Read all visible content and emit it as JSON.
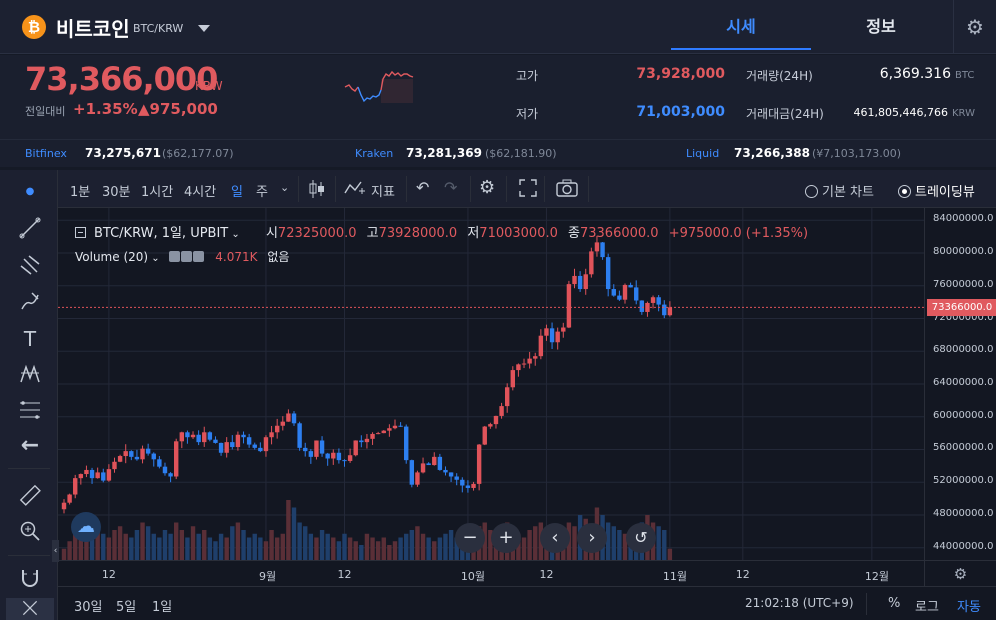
{
  "header": {
    "coin_symbol": "₿",
    "coin_name": "비트코인",
    "pair": "BTC/KRW",
    "tabs": [
      "시세",
      "정보"
    ]
  },
  "summary": {
    "price": "73,366,000",
    "unit": "KRW",
    "change_label": "전일대비",
    "change_pct": "+1.35%",
    "change_amt": "▲975,000",
    "high_label": "고가",
    "high": "73,928,000",
    "low_label": "저가",
    "low": "71,003,000",
    "volume_label": "거래량(24H)",
    "volume": "6,369.316",
    "volume_unit": "BTC",
    "amount_label": "거래대금(24H)",
    "amount": "461,805,446,766",
    "amount_unit": "KRW"
  },
  "exchanges": [
    {
      "name": "Bitfinex",
      "price": "73,275,671",
      "alt": "($62,177.07)"
    },
    {
      "name": "Kraken",
      "price": "73,281,369",
      "alt": "($62,181.90)"
    },
    {
      "name": "Liquid",
      "price": "73,266,388",
      "alt": "(¥7,103,173.00)"
    }
  ],
  "toolbar": {
    "intervals": [
      "1분",
      "30분",
      "1시간",
      "4시간",
      "일",
      "주"
    ],
    "indicator_label": "지표",
    "basic_chart": "기본 차트",
    "trading_view": "트레이딩뷰"
  },
  "legend": {
    "title": "BTC/KRW, 1일, UPBIT",
    "open_label": "시",
    "open": "72325000.0",
    "high_label": "고",
    "high": "73928000.0",
    "low_label": "저",
    "low": "71003000.0",
    "close_label": "종",
    "close": "73366000.0",
    "change": "+975000.0 (+1.35%)",
    "volume_title": "Volume (20)",
    "volume_value": "4.071K",
    "volume_extra": "없음"
  },
  "bottom": {
    "ranges": [
      "30일",
      "5일",
      "1일"
    ],
    "time": "21:02:18 (UTC+9)",
    "percent": "%",
    "log": "로그",
    "auto": "자동"
  },
  "chart_data": {
    "type": "candlestick",
    "title": "BTC/KRW, 1일, UPBIT",
    "y_ticks": [
      "84000000.0",
      "80000000.0",
      "76000000.0",
      "72000000.0",
      "68000000.0",
      "64000000.0",
      "60000000.0",
      "56000000.0",
      "52000000.0",
      "48000000.0",
      "44000000.0"
    ],
    "ylim": [
      42500000,
      85500000
    ],
    "current_price_label": "73366000.0",
    "current_price": 73366000,
    "x_ticks": [
      "12",
      "9월",
      "12",
      "10월",
      "12",
      "11월",
      "12",
      "12월"
    ],
    "closes": [
      49500000,
      50500000,
      52500000,
      53000000,
      53500000,
      52500000,
      53200000,
      52200000,
      53600000,
      54500000,
      55200000,
      55800000,
      55100000,
      54800000,
      56100000,
      55500000,
      54800000,
      53900000,
      53100000,
      52700000,
      57000000,
      58100000,
      57500000,
      57800000,
      56900000,
      58100000,
      57200000,
      56800000,
      55600000,
      56900000,
      56300000,
      57800000,
      57500000,
      56600000,
      56200000,
      55800000,
      57500000,
      58100000,
      58900000,
      59400000,
      60400000,
      59200000,
      56200000,
      55800000,
      55100000,
      57100000,
      55500000,
      54900000,
      55600000,
      54700000,
      54600000,
      55300000,
      57100000,
      56900000,
      57300000,
      57900000,
      58000000,
      58300000,
      58600000,
      58900000,
      58800000,
      54700000,
      51700000,
      53200000,
      54300000,
      54100000,
      55100000,
      53500000,
      53200000,
      52700000,
      52300000,
      51600000,
      51300000,
      51800000,
      56600000,
      58800000,
      59100000,
      60100000,
      61300000,
      63600000,
      65700000,
      66400000,
      66500000,
      67100000,
      67400000,
      69900000,
      70800000,
      69100000,
      70400000,
      70900000,
      76200000,
      77200000,
      75600000,
      77400000,
      80200000,
      81300000,
      79500000,
      75600000,
      74800000,
      74300000,
      76100000,
      75800000,
      74200000,
      72800000,
      73900000,
      74600000,
      73700000,
      72400000,
      73366000
    ],
    "volume_levels": [
      0.15,
      0.25,
      0.35,
      0.45,
      0.4,
      0.3,
      0.5,
      0.35,
      0.3,
      0.4,
      0.45,
      0.35,
      0.3,
      0.4,
      0.5,
      0.45,
      0.35,
      0.3,
      0.4,
      0.35,
      0.5,
      0.4,
      0.3,
      0.45,
      0.35,
      0.4,
      0.3,
      0.25,
      0.35,
      0.3,
      0.45,
      0.5,
      0.4,
      0.3,
      0.35,
      0.3,
      0.25,
      0.4,
      0.3,
      0.35,
      0.8,
      0.7,
      0.5,
      0.45,
      0.35,
      0.3,
      0.4,
      0.35,
      0.3,
      0.25,
      0.35,
      0.3,
      0.25,
      0.2,
      0.35,
      0.3,
      0.25,
      0.3,
      0.2,
      0.25,
      0.3,
      0.35,
      0.4,
      0.45,
      0.35,
      0.3,
      0.25,
      0.3,
      0.35,
      0.4,
      0.3,
      0.35,
      0.3,
      0.25,
      0.45,
      0.5,
      0.4,
      0.35,
      0.45,
      0.5,
      0.4,
      0.35,
      0.3,
      0.4,
      0.45,
      0.5,
      0.35,
      0.3,
      0.4,
      0.35,
      0.5,
      0.45,
      0.6,
      0.55,
      0.45,
      0.7,
      0.6,
      0.5,
      0.45,
      0.4,
      0.35,
      0.4,
      0.45,
      0.5,
      0.6,
      0.5,
      0.45,
      0.4,
      0.15
    ]
  }
}
